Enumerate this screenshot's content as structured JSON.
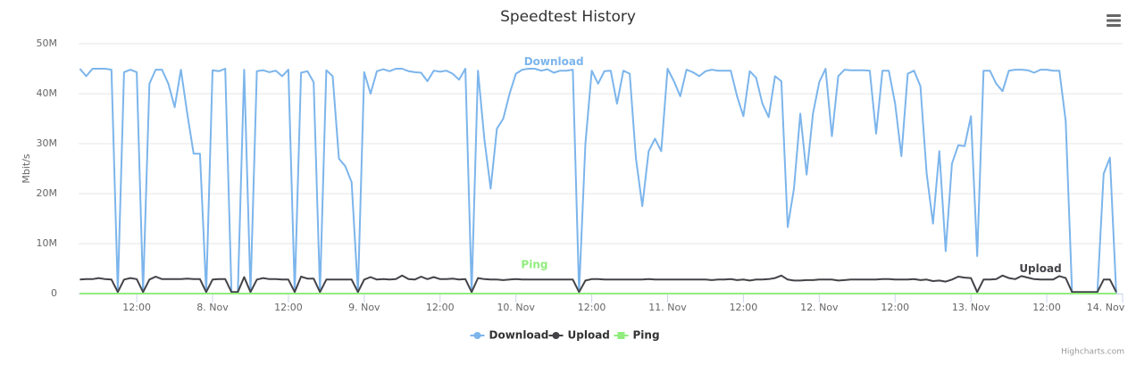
{
  "chart_data": {
    "type": "line",
    "title": "Speedtest History",
    "y_label": "Mbit/s",
    "credits": "Highcharts.com",
    "x": [
      3,
      4,
      5,
      6,
      7,
      8,
      9,
      10,
      11,
      12,
      13,
      14,
      15,
      16,
      17,
      18,
      19,
      20,
      21,
      22,
      23,
      24,
      25,
      26,
      27,
      28,
      29,
      30,
      31,
      32,
      33,
      34,
      35,
      36,
      37,
      38,
      39,
      40,
      41,
      42,
      43,
      44,
      45,
      46,
      47,
      48,
      49,
      50,
      51,
      52,
      53,
      54,
      55,
      56,
      57,
      58,
      59,
      60,
      61,
      62,
      63,
      64,
      65,
      66,
      67,
      68,
      69,
      70,
      71,
      72,
      73,
      74,
      75,
      76,
      77,
      78,
      79,
      80,
      81,
      82,
      83,
      84,
      85,
      86,
      87,
      88,
      89,
      90,
      91,
      92,
      93,
      94,
      95,
      96,
      97,
      98,
      99,
      100,
      101,
      102,
      103,
      104,
      105,
      106,
      107,
      108,
      109,
      110,
      111,
      112,
      113,
      114,
      115,
      116,
      117,
      118,
      119,
      120,
      121,
      122,
      123,
      124,
      125,
      126,
      127,
      128,
      129,
      130,
      131,
      132,
      133,
      134,
      135,
      136,
      137,
      138,
      139,
      140,
      141,
      142,
      143,
      144,
      145,
      146,
      147,
      148,
      149,
      150,
      151,
      152,
      153,
      154,
      155,
      156,
      157,
      158,
      159,
      160,
      161,
      162,
      163,
      164,
      165,
      166,
      167
    ],
    "series": [
      {
        "name": "Download",
        "color": "#7cb5ec",
        "values": [
          45,
          43.5,
          45,
          45,
          45,
          44.8,
          0.5,
          44.3,
          44.8,
          44.3,
          0.3,
          42,
          44.8,
          44.8,
          42,
          37.3,
          44.8,
          36,
          28,
          28,
          0.3,
          44.7,
          44.5,
          45,
          0.2,
          0.2,
          44.8,
          0.3,
          44.5,
          44.7,
          44.3,
          44.6,
          43.5,
          44.8,
          0.3,
          44.2,
          44.5,
          42.3,
          0.3,
          44.7,
          43.5,
          27,
          25.5,
          22.3,
          0.3,
          44.3,
          40,
          44.5,
          44.9,
          44.5,
          45,
          45,
          44.5,
          44.3,
          44.2,
          42.5,
          44.6,
          44.4,
          44.6,
          44,
          42.8,
          45,
          0.3,
          44.6,
          31,
          21,
          33,
          35,
          40,
          44,
          44.8,
          45,
          45,
          44.6,
          44.9,
          44.2,
          44.6,
          44.6,
          44.8,
          0.3,
          30,
          44.6,
          42,
          44.5,
          44.6,
          38,
          44.6,
          44,
          27,
          17.5,
          28.5,
          31,
          28.5,
          45,
          42.5,
          39.5,
          44.8,
          44.3,
          43.5,
          44.5,
          44.8,
          44.6,
          44.6,
          44.6,
          39.5,
          35.5,
          44.5,
          43.2,
          38,
          35.3,
          43.5,
          42.5,
          13.3,
          21,
          36,
          23.8,
          36,
          42.3,
          45,
          31.5,
          43.5,
          44.8,
          44.7,
          44.7,
          44.7,
          44.6,
          32,
          44.6,
          44.6,
          38,
          27.5,
          44,
          44.6,
          41.5,
          24,
          14,
          28.5,
          8.5,
          26,
          29.7,
          29.5,
          35.5,
          7.5,
          44.6,
          44.6,
          42,
          40.5,
          44.6,
          44.8,
          44.8,
          44.7,
          44.2,
          44.8,
          44.8,
          44.6,
          44.6,
          34.5,
          0.3,
          0,
          0,
          0,
          0,
          24,
          27.2,
          0
        ]
      },
      {
        "name": "Upload",
        "color": "#434348",
        "values": [
          2.8,
          2.9,
          2.9,
          3.1,
          2.9,
          2.8,
          0.3,
          2.8,
          3.1,
          2.9,
          0.3,
          2.8,
          3.4,
          2.9,
          2.9,
          2.9,
          2.9,
          3,
          2.9,
          2.9,
          0.3,
          2.8,
          2.9,
          2.9,
          0.3,
          0.3,
          3.3,
          0.3,
          2.8,
          3.1,
          2.9,
          2.9,
          2.8,
          2.8,
          0.3,
          3.4,
          3,
          3,
          0.3,
          2.8,
          2.8,
          2.8,
          2.8,
          2.8,
          0.3,
          2.8,
          3.3,
          2.8,
          2.9,
          2.8,
          2.9,
          3.6,
          2.9,
          2.8,
          3.4,
          2.9,
          3.3,
          2.9,
          2.9,
          3,
          2.8,
          2.9,
          0.3,
          3.1,
          2.9,
          2.8,
          2.8,
          2.7,
          2.8,
          2.9,
          2.8,
          2.8,
          2.8,
          2.8,
          2.8,
          2.8,
          2.8,
          2.8,
          2.8,
          0.3,
          2.6,
          2.9,
          2.9,
          2.8,
          2.8,
          2.8,
          2.8,
          2.8,
          2.8,
          2.8,
          2.9,
          2.8,
          2.8,
          2.8,
          2.8,
          2.8,
          2.8,
          2.8,
          2.8,
          2.8,
          2.7,
          2.8,
          2.8,
          2.9,
          2.7,
          2.8,
          2.6,
          2.8,
          2.8,
          2.9,
          3.1,
          3.6,
          2.8,
          2.6,
          2.6,
          2.7,
          2.7,
          2.8,
          2.8,
          2.8,
          2.6,
          2.7,
          2.8,
          2.8,
          2.8,
          2.8,
          2.8,
          2.9,
          2.9,
          2.8,
          2.8,
          2.8,
          2.9,
          2.7,
          2.8,
          2.5,
          2.6,
          2.4,
          2.8,
          3.4,
          3.2,
          3.1,
          0.3,
          2.8,
          2.8,
          2.9,
          3.6,
          3.1,
          2.9,
          3.5,
          3.2,
          2.9,
          2.8,
          2.8,
          2.8,
          3.5,
          3.1,
          0.3,
          0.3,
          0.3,
          0.3,
          0.3,
          2.8,
          2.8,
          0.3
        ]
      },
      {
        "name": "Ping",
        "color": "#90ed7d",
        "values": [
          0,
          0,
          0,
          0,
          0,
          0,
          0,
          0,
          0,
          0,
          0,
          0,
          0,
          0,
          0,
          0,
          0,
          0,
          0,
          0,
          0,
          0,
          0,
          0,
          0,
          0,
          0,
          0,
          0,
          0,
          0,
          0,
          0,
          0,
          0,
          0,
          0,
          0,
          0,
          0,
          0,
          0,
          0,
          0,
          0,
          0,
          0,
          0,
          0,
          0,
          0,
          0,
          0,
          0,
          0,
          0,
          0,
          0,
          0,
          0,
          0,
          0,
          0,
          0,
          0,
          0,
          0,
          0,
          0,
          0,
          0,
          0,
          0,
          0,
          0,
          0,
          0,
          0,
          0,
          0,
          0,
          0,
          0,
          0,
          0,
          0,
          0,
          0,
          0,
          0,
          0,
          0,
          0,
          0,
          0,
          0,
          0,
          0,
          0,
          0,
          0,
          0,
          0,
          0,
          0,
          0,
          0,
          0,
          0,
          0,
          0,
          0,
          0,
          0,
          0,
          0,
          0,
          0,
          0,
          0,
          0,
          0,
          0,
          0,
          0,
          0,
          0,
          0,
          0,
          0,
          0,
          0,
          0,
          0,
          0,
          0,
          0,
          0,
          0,
          0,
          0,
          0,
          0,
          0,
          0,
          0,
          0,
          0,
          0,
          0,
          0,
          0,
          0,
          0,
          0,
          0,
          0,
          0,
          0,
          0,
          0,
          0,
          0,
          0,
          0
        ]
      }
    ],
    "xlim": [
      2.8,
      168
    ],
    "xticks": [
      {
        "value": 12,
        "label": "12:00"
      },
      {
        "value": 24,
        "label": "8. Nov"
      },
      {
        "value": 36,
        "label": "12:00"
      },
      {
        "value": 48,
        "label": "9. Nov"
      },
      {
        "value": 60,
        "label": "12:00"
      },
      {
        "value": 72,
        "label": "10. Nov"
      },
      {
        "value": 84,
        "label": "12:00"
      },
      {
        "value": 96,
        "label": "11. Nov"
      },
      {
        "value": 108,
        "label": "12:00"
      },
      {
        "value": 120,
        "label": "12. Nov"
      },
      {
        "value": 132,
        "label": "12:00"
      },
      {
        "value": 144,
        "label": "13. Nov"
      },
      {
        "value": 156,
        "label": "12:00"
      },
      {
        "value": 168,
        "label": "14. Nov"
      }
    ],
    "ylim": [
      0,
      50
    ],
    "yticks": [
      0,
      {
        "value": 10,
        "label": "10M"
      },
      {
        "value": 20,
        "label": "20M"
      },
      {
        "value": 30,
        "label": "30M"
      },
      {
        "value": 40,
        "label": "40M"
      },
      {
        "value": 50,
        "label": "50M"
      }
    ],
    "grid": true,
    "legend": "bottom"
  }
}
